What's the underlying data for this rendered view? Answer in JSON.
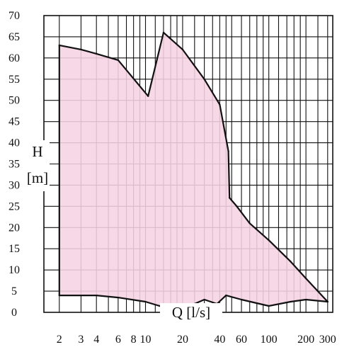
{
  "chart_data": {
    "type": "area",
    "title": "",
    "xlabel": "Q [l/s]",
    "ylabel_line1": "H",
    "ylabel_line2": "[m]",
    "x_scale": "log",
    "xlim": [
      1.5,
      330
    ],
    "ylim": [
      0,
      70
    ],
    "grid": true,
    "fill_color": "#f5d3e3",
    "line_color": "#111111",
    "grid_color": "#111111",
    "y_ticks": [
      0,
      5,
      10,
      15,
      20,
      25,
      30,
      35,
      40,
      45,
      50,
      55,
      60,
      65,
      70
    ],
    "y_tick_labels": [
      "0",
      "5",
      "10",
      "15",
      "20",
      "25",
      "30",
      "35",
      "40",
      "45",
      "50",
      "55",
      "60",
      "65",
      "70"
    ],
    "x_tick_values": [
      2,
      3,
      4,
      6,
      8,
      10,
      20,
      40,
      60,
      100,
      200,
      300
    ],
    "x_tick_labels": [
      "2",
      "3",
      "4",
      "6",
      "8",
      "10",
      "20",
      "40",
      "60",
      "100",
      "200",
      "300"
    ],
    "x_grid": [
      2,
      3,
      4,
      5,
      6,
      7,
      8,
      9,
      10,
      12,
      14,
      16,
      18,
      20,
      25,
      30,
      35,
      40,
      45,
      50,
      60,
      70,
      80,
      90,
      100,
      120,
      140,
      160,
      180,
      200,
      250,
      300
    ],
    "upper_boundary": [
      {
        "q": 2,
        "h": 63
      },
      {
        "q": 3,
        "h": 62
      },
      {
        "q": 4,
        "h": 61
      },
      {
        "q": 6,
        "h": 59.5
      },
      {
        "q": 10.5,
        "h": 51
      },
      {
        "q": 14,
        "h": 66
      },
      {
        "q": 20,
        "h": 62
      },
      {
        "q": 30,
        "h": 55
      },
      {
        "q": 40,
        "h": 49
      },
      {
        "q": 47,
        "h": 38
      },
      {
        "q": 48,
        "h": 27
      },
      {
        "q": 55,
        "h": 25
      },
      {
        "q": 70,
        "h": 21
      },
      {
        "q": 100,
        "h": 17
      },
      {
        "q": 150,
        "h": 12
      },
      {
        "q": 200,
        "h": 8
      },
      {
        "q": 300,
        "h": 2.5
      }
    ],
    "lower_boundary": [
      {
        "q": 2,
        "h": 4
      },
      {
        "q": 4,
        "h": 4
      },
      {
        "q": 6,
        "h": 3.5
      },
      {
        "q": 10,
        "h": 2.5
      },
      {
        "q": 13,
        "h": 1.5
      },
      {
        "q": 20,
        "h": 1.5
      },
      {
        "q": 25,
        "h": 2
      },
      {
        "q": 30,
        "h": 3
      },
      {
        "q": 38,
        "h": 2
      },
      {
        "q": 45,
        "h": 4
      },
      {
        "q": 60,
        "h": 3
      },
      {
        "q": 100,
        "h": 1.5
      },
      {
        "q": 150,
        "h": 2.5
      },
      {
        "q": 200,
        "h": 3
      },
      {
        "q": 300,
        "h": 2.5
      }
    ]
  }
}
